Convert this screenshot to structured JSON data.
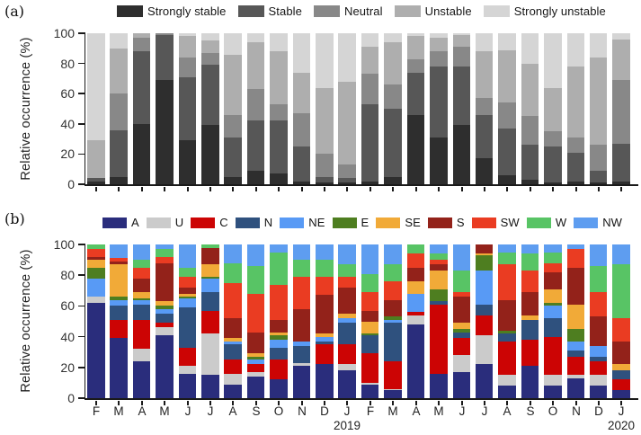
{
  "figure": {
    "panel_a": {
      "label": "(a)"
    },
    "panel_b": {
      "label": "(b)"
    },
    "x_axis": {
      "year_labels": [
        {
          "text": "2019",
          "tick_index": 11
        },
        {
          "text": "2020",
          "tick_index": 23
        }
      ]
    }
  },
  "chart_data": [
    {
      "panel": "a",
      "type": "bar",
      "stacked": true,
      "orientation": "vertical",
      "ylabel": "Relative occurrence (%)",
      "ylim": [
        0,
        100
      ],
      "yticks": [
        0,
        20,
        40,
        60,
        80,
        100
      ],
      "legend_position": "top",
      "grid": false,
      "categories": [
        "F",
        "M",
        "A",
        "M",
        "J",
        "J",
        "A",
        "S",
        "O",
        "N",
        "D",
        "J",
        "F",
        "M",
        "A",
        "M",
        "J",
        "J",
        "A",
        "S",
        "O",
        "N",
        "D",
        "J"
      ],
      "series": [
        {
          "name": "Strongly stable",
          "color": "#2e2e2e",
          "values": [
            2,
            5,
            40,
            69,
            29,
            39,
            5,
            9,
            7,
            2,
            1,
            1,
            2,
            5,
            46,
            31,
            39,
            17,
            6,
            3,
            1,
            2,
            1,
            2
          ]
        },
        {
          "name": "Stable",
          "color": "#575757",
          "values": [
            2,
            31,
            48,
            30,
            42,
            40,
            26,
            33,
            35,
            23,
            4,
            3,
            51,
            45,
            28,
            47,
            39,
            29,
            31,
            23,
            24,
            19,
            8,
            25
          ]
        },
        {
          "name": "Neutral",
          "color": "#888888",
          "values": [
            0,
            24,
            9,
            1,
            13,
            8,
            15,
            21,
            11,
            22,
            15,
            9,
            20,
            16,
            9,
            10,
            13,
            11,
            17,
            19,
            10,
            10,
            17,
            42
          ]
        },
        {
          "name": "Unstable",
          "color": "#aeaeae",
          "values": [
            25,
            30,
            3,
            0,
            14,
            8,
            40,
            31,
            35,
            27,
            44,
            55,
            18,
            28,
            15,
            9,
            8,
            31,
            35,
            35,
            29,
            47,
            58,
            27
          ]
        },
        {
          "name": "Strongly unstable",
          "color": "#d5d5d5",
          "values": [
            71,
            10,
            0,
            0,
            2,
            5,
            14,
            6,
            12,
            26,
            36,
            32,
            9,
            6,
            2,
            3,
            1,
            12,
            11,
            20,
            36,
            22,
            16,
            4
          ]
        }
      ]
    },
    {
      "panel": "b",
      "type": "bar",
      "stacked": true,
      "orientation": "vertical",
      "ylabel": "Relative occurrence (%)",
      "ylim": [
        0,
        100
      ],
      "yticks": [
        0,
        20,
        40,
        60,
        80,
        100
      ],
      "legend_position": "top",
      "grid": false,
      "categories": [
        "F",
        "M",
        "A",
        "M",
        "J",
        "J",
        "A",
        "S",
        "O",
        "N",
        "D",
        "J",
        "F",
        "M",
        "A",
        "M",
        "J",
        "J",
        "A",
        "S",
        "O",
        "N",
        "D",
        "J"
      ],
      "series": [
        {
          "name": "A",
          "color": "#2a2d7c",
          "values": [
            62,
            39,
            24,
            41,
            16,
            15,
            9,
            14,
            12,
            21,
            22,
            18,
            9,
            5,
            48,
            16,
            17,
            22,
            8,
            21,
            8,
            13,
            8,
            5
          ]
        },
        {
          "name": "U",
          "color": "#cbcbcb",
          "values": [
            4,
            0,
            8,
            5,
            5,
            27,
            7,
            3,
            0,
            2,
            0,
            4,
            1,
            1,
            6,
            0,
            11,
            19,
            7,
            0,
            7,
            2,
            7,
            0
          ]
        },
        {
          "name": "C",
          "color": "#cc0404",
          "values": [
            0,
            12,
            19,
            3,
            12,
            15,
            9,
            5,
            13,
            0,
            13,
            13,
            19,
            18,
            2,
            45,
            11,
            13,
            22,
            17,
            25,
            12,
            9,
            7
          ]
        },
        {
          "name": "N",
          "color": "#2f517e",
          "values": [
            0,
            9,
            10,
            6,
            26,
            12,
            10,
            0,
            8,
            11,
            2,
            14,
            12,
            25,
            0,
            2,
            4,
            7,
            5,
            13,
            12,
            4,
            3,
            6
          ]
        },
        {
          "name": "NE",
          "color": "#589af5",
          "values": [
            12,
            4,
            3,
            3,
            6,
            9,
            2,
            3,
            5,
            3,
            3,
            3,
            0,
            2,
            12,
            0,
            0,
            22,
            0,
            0,
            8,
            6,
            7,
            0
          ]
        },
        {
          "name": "E",
          "color": "#4e7e20",
          "values": [
            7,
            2,
            1,
            2,
            1,
            1,
            0,
            2,
            3,
            0,
            0,
            0,
            1,
            2,
            0,
            8,
            2,
            10,
            2,
            0,
            2,
            8,
            0,
            0
          ]
        },
        {
          "name": "SE",
          "color": "#f1aa38",
          "values": [
            5,
            21,
            4,
            3,
            2,
            8,
            2,
            2,
            2,
            0,
            2,
            3,
            8,
            0,
            8,
            12,
            4,
            1,
            0,
            3,
            9,
            16,
            0,
            4
          ]
        },
        {
          "name": "S",
          "color": "#93221a",
          "values": [
            2,
            2,
            9,
            25,
            4,
            11,
            13,
            14,
            8,
            21,
            25,
            17,
            7,
            11,
            9,
            4,
            17,
            6,
            20,
            15,
            11,
            24,
            19,
            15
          ]
        },
        {
          "name": "SW",
          "color": "#ea3c22",
          "values": [
            5,
            2,
            7,
            4,
            7,
            0,
            23,
            25,
            23,
            21,
            12,
            7,
            12,
            12,
            9,
            3,
            3,
            0,
            23,
            14,
            6,
            12,
            16,
            15
          ]
        },
        {
          "name": "W",
          "color": "#58c465",
          "values": [
            3,
            0,
            5,
            5,
            6,
            2,
            13,
            18,
            21,
            11,
            11,
            8,
            12,
            11,
            6,
            4,
            14,
            0,
            8,
            11,
            7,
            0,
            17,
            35
          ]
        },
        {
          "name": "NW",
          "color": "#5e9df0",
          "values": [
            0,
            9,
            10,
            3,
            15,
            0,
            12,
            14,
            5,
            10,
            10,
            13,
            19,
            13,
            0,
            6,
            17,
            0,
            5,
            6,
            5,
            3,
            14,
            13
          ]
        }
      ]
    }
  ]
}
